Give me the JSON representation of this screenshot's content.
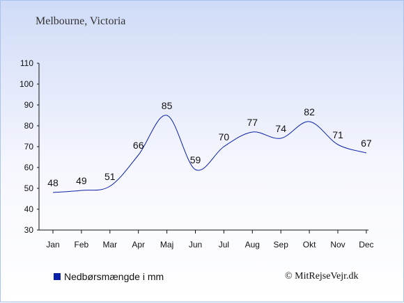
{
  "header": {
    "title": "Melbourne, Victoria"
  },
  "legend": {
    "label": "Nedbørsmængde i mm"
  },
  "footer": {
    "copyright": "© MitRejseVejr.dk"
  },
  "colors": {
    "line": "#0a1fa8",
    "axis": "#111111"
  },
  "chart_data": {
    "type": "line",
    "categories": [
      "Jan",
      "Feb",
      "Mar",
      "Apr",
      "Maj",
      "Jun",
      "Jul",
      "Aug",
      "Sep",
      "Okt",
      "Nov",
      "Dec"
    ],
    "series": [
      {
        "name": "Nedbørsmængde i mm",
        "values": [
          48,
          49,
          51,
          66,
          85,
          59,
          70,
          77,
          74,
          82,
          71,
          67
        ]
      }
    ],
    "ylim": [
      30,
      110
    ],
    "yticks": [
      30,
      40,
      50,
      60,
      70,
      80,
      90,
      100,
      110
    ],
    "grid": false,
    "legend_position": "bottom-left"
  }
}
